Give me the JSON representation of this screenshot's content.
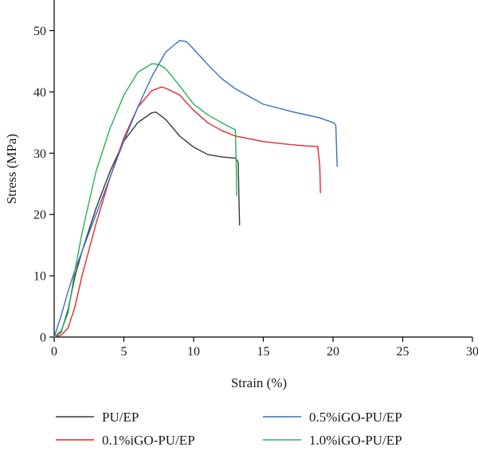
{
  "chart_data": {
    "type": "line",
    "title": "",
    "xlabel": "Strain (%)",
    "ylabel": "Stress (MPa)",
    "xlim": [
      0,
      30
    ],
    "ylim": [
      0,
      55
    ],
    "xticks": [
      0,
      5,
      10,
      15,
      20,
      25,
      30
    ],
    "yticks": [
      0,
      10,
      20,
      30,
      40,
      50
    ],
    "grid": false,
    "legend_position": "bottom",
    "series": [
      {
        "name": "PU/EP",
        "color": "#3a3a3a",
        "x": [
          0,
          0.5,
          1,
          1.5,
          2,
          3,
          4,
          5,
          6,
          7,
          7.3,
          8,
          9,
          10,
          11,
          12,
          13,
          13.1,
          13.2,
          13.25,
          13.3
        ],
        "y": [
          0,
          0.8,
          4.5,
          10,
          14,
          21,
          27,
          32,
          35,
          36.6,
          36.7,
          35.5,
          32.8,
          31,
          29.8,
          29.4,
          29.2,
          28.9,
          28.5,
          23,
          18.2
        ]
      },
      {
        "name": "0.1%iGO-PU/EP",
        "color": "#e8262a",
        "x": [
          0,
          0.5,
          1,
          1.5,
          2,
          3,
          4,
          5,
          6,
          7,
          7.7,
          8,
          9,
          10,
          11,
          12,
          13,
          15,
          17,
          18,
          18.9,
          19.05,
          19.1
        ],
        "y": [
          0,
          0.3,
          1.5,
          5,
          10,
          18.5,
          26,
          32.5,
          37.5,
          40.2,
          40.8,
          40.6,
          39.5,
          37,
          35,
          33.7,
          32.8,
          31.9,
          31.4,
          31.2,
          31.1,
          28,
          23.5
        ]
      },
      {
        "name": "0.5%iGO-PU/EP",
        "color": "#3a6fc4",
        "x": [
          0,
          0.5,
          1,
          1.5,
          2,
          3,
          4,
          5,
          6,
          7,
          8,
          9,
          9.5,
          10,
          11,
          12,
          13,
          15,
          17,
          19,
          20,
          20.2,
          20.3
        ],
        "y": [
          0,
          3.5,
          7.5,
          11,
          14,
          20,
          26,
          32,
          37.5,
          42.5,
          46.5,
          48.4,
          48.2,
          47,
          44.5,
          42.2,
          40.5,
          38,
          36.8,
          35.8,
          35,
          34.6,
          27.8
        ]
      },
      {
        "name": "1.0%iGO-PU/EP",
        "color": "#2aaf55",
        "x": [
          0,
          0.5,
          1,
          1.5,
          2,
          3,
          4,
          5,
          6,
          7,
          7.5,
          8,
          9,
          10,
          11,
          12,
          13,
          13.05,
          13.1
        ],
        "y": [
          0,
          1,
          4,
          11,
          17,
          27,
          34,
          39.5,
          43.2,
          44.6,
          44.5,
          43.8,
          41,
          38,
          36.3,
          35,
          33.8,
          29,
          23
        ]
      }
    ]
  }
}
